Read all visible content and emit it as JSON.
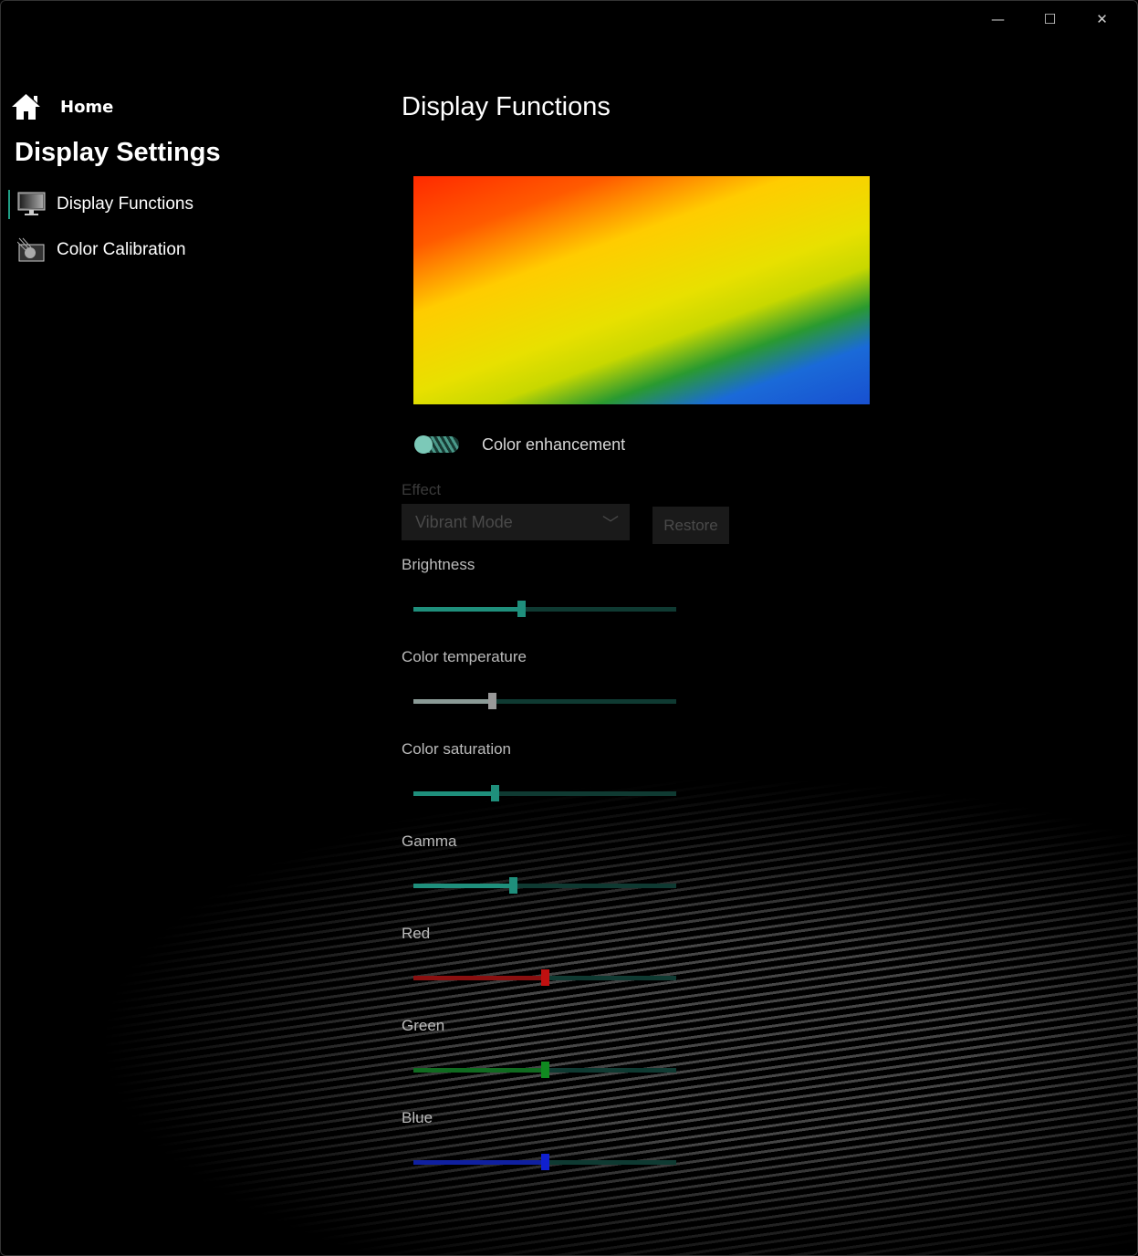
{
  "window": {
    "controls": {
      "minimize": "—",
      "maximize": "☐",
      "close": "✕"
    }
  },
  "sidebar": {
    "home": "Home",
    "title": "Display Settings",
    "items": [
      {
        "label": "Display Functions",
        "icon": "monitor-icon",
        "active": true
      },
      {
        "label": "Color Calibration",
        "icon": "calibration-icon",
        "active": false
      }
    ]
  },
  "main": {
    "title": "Display Functions",
    "color_enhancement": {
      "label": "Color enhancement",
      "on": true
    },
    "effect": {
      "label": "Effect",
      "value": "Vibrant Mode",
      "restore": "Restore"
    },
    "sliders": [
      {
        "label": "Brightness",
        "value": 41,
        "color": "#1f8f7c",
        "thumb": "#1f8f7c"
      },
      {
        "label": "Color temperature",
        "value": 30,
        "color": "#8a9a96",
        "thumb": "#999999"
      },
      {
        "label": "Color saturation",
        "value": 31,
        "color": "#1f8f7c",
        "thumb": "#1f8f7c"
      },
      {
        "label": "Gamma",
        "value": 38,
        "color": "#1f8f7c",
        "thumb": "#1f8f7c"
      },
      {
        "label": "Red",
        "value": 50,
        "color": "#8a1010",
        "thumb": "#c01010"
      },
      {
        "label": "Green",
        "value": 50,
        "color": "#106a20",
        "thumb": "#108a20"
      },
      {
        "label": "Blue",
        "value": 50,
        "color": "#1020a0",
        "thumb": "#1020d0"
      }
    ]
  }
}
